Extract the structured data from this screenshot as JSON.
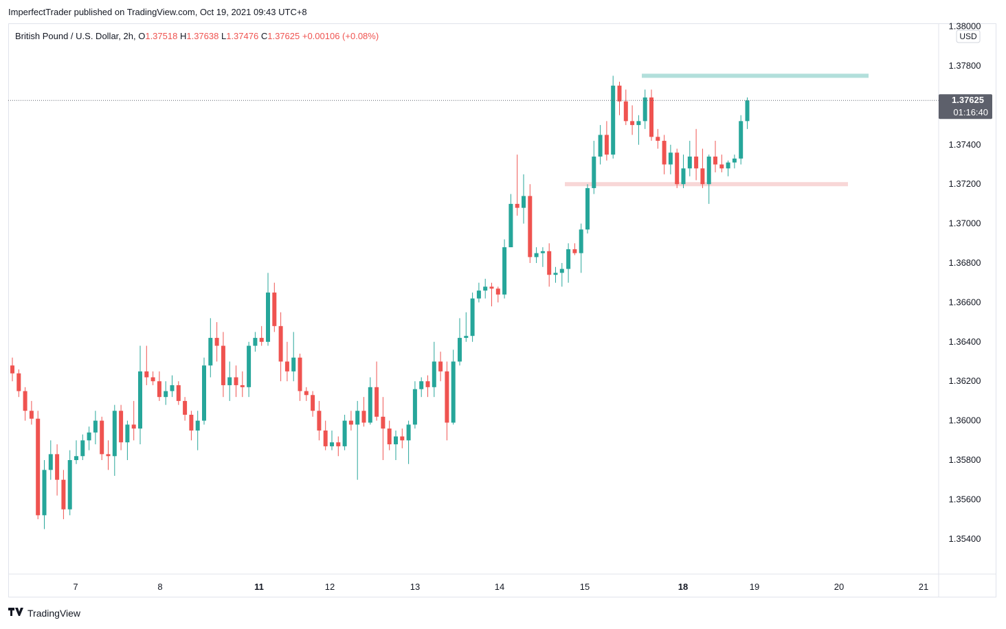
{
  "header": {
    "publisher": "ImperfectTrader published on TradingView.com, Oct 19, 2021 09:43 UTC+8"
  },
  "legend": {
    "symbol": "British Pound / U.S. Dollar, 2h,",
    "o_label": "O",
    "o_value": "1.37518",
    "h_label": "H",
    "h_value": "1.37638",
    "l_label": "L",
    "l_value": "1.37476",
    "c_label": "C",
    "c_value": "1.37625",
    "change": "+0.00106 (+0.08%)"
  },
  "price_axis": {
    "currency": "USD",
    "current_price": "1.37625",
    "countdown": "01:16:40"
  },
  "footer": {
    "brand": "TradingView",
    "logo_icon": "tradingview-logo-icon"
  },
  "colors": {
    "up": "#26a69a",
    "down": "#ef5350",
    "resistance": "#b2dfdb",
    "support": "#f8d7d7",
    "axis_label_bg": "#5d606b"
  },
  "chart_data": {
    "type": "candlestick",
    "ylim": [
      1.352,
      1.38
    ],
    "y_ticks": [
      "1.35400",
      "1.35600",
      "1.35800",
      "1.36000",
      "1.36200",
      "1.36400",
      "1.36600",
      "1.36800",
      "1.37000",
      "1.37200",
      "1.37400",
      "1.37800",
      "1.38000"
    ],
    "x_ticks": [
      "7",
      "8",
      "11",
      "12",
      "13",
      "14",
      "15",
      "18",
      "19",
      "20",
      "21"
    ],
    "zones": [
      {
        "name": "resistance",
        "price": 1.3775
      },
      {
        "name": "support",
        "price": 1.372
      }
    ],
    "last_close": 1.37625,
    "candles": [
      [
        1.3628,
        1.3632,
        1.362,
        1.3624
      ],
      [
        1.3624,
        1.3626,
        1.3612,
        1.3615
      ],
      [
        1.3615,
        1.3617,
        1.36,
        1.3605
      ],
      [
        1.3605,
        1.361,
        1.3598,
        1.3601
      ],
      [
        1.3601,
        1.3605,
        1.355,
        1.3552
      ],
      [
        1.3552,
        1.358,
        1.3545,
        1.3575
      ],
      [
        1.3575,
        1.359,
        1.357,
        1.3583
      ],
      [
        1.3583,
        1.3588,
        1.3562,
        1.357
      ],
      [
        1.357,
        1.3575,
        1.355,
        1.3555
      ],
      [
        1.3555,
        1.3585,
        1.3552,
        1.358
      ],
      [
        1.358,
        1.359,
        1.3578,
        1.3582
      ],
      [
        1.3582,
        1.3593,
        1.358,
        1.359
      ],
      [
        1.359,
        1.3597,
        1.3585,
        1.3594
      ],
      [
        1.3594,
        1.3605,
        1.3588,
        1.36
      ],
      [
        1.36,
        1.3602,
        1.358,
        1.3583
      ],
      [
        1.3583,
        1.359,
        1.3575,
        1.3582
      ],
      [
        1.3582,
        1.3608,
        1.3572,
        1.3605
      ],
      [
        1.3605,
        1.3608,
        1.3585,
        1.3589
      ],
      [
        1.3589,
        1.36,
        1.358,
        1.3598
      ],
      [
        1.3598,
        1.361,
        1.359,
        1.3596
      ],
      [
        1.3596,
        1.3638,
        1.3588,
        1.3625
      ],
      [
        1.3625,
        1.3638,
        1.3618,
        1.3622
      ],
      [
        1.3622,
        1.3625,
        1.3618,
        1.362
      ],
      [
        1.362,
        1.3625,
        1.361,
        1.3612
      ],
      [
        1.3612,
        1.362,
        1.3608,
        1.3615
      ],
      [
        1.3615,
        1.3623,
        1.3612,
        1.3618
      ],
      [
        1.3618,
        1.362,
        1.3608,
        1.361
      ],
      [
        1.361,
        1.3612,
        1.36,
        1.3603
      ],
      [
        1.3603,
        1.3605,
        1.359,
        1.3595
      ],
      [
        1.3595,
        1.3605,
        1.3585,
        1.36
      ],
      [
        1.36,
        1.3632,
        1.3598,
        1.3628
      ],
      [
        1.3628,
        1.3652,
        1.3622,
        1.3642
      ],
      [
        1.3642,
        1.365,
        1.363,
        1.3638
      ],
      [
        1.3638,
        1.3645,
        1.3612,
        1.3618
      ],
      [
        1.3618,
        1.363,
        1.361,
        1.3622
      ],
      [
        1.3622,
        1.3628,
        1.3612,
        1.3618
      ],
      [
        1.3618,
        1.3625,
        1.3612,
        1.3617
      ],
      [
        1.3617,
        1.364,
        1.3612,
        1.3638
      ],
      [
        1.3638,
        1.3645,
        1.3635,
        1.3642
      ],
      [
        1.3642,
        1.3648,
        1.3638,
        1.364
      ],
      [
        1.364,
        1.3675,
        1.3638,
        1.3665
      ],
      [
        1.3665,
        1.367,
        1.3645,
        1.3648
      ],
      [
        1.3648,
        1.3655,
        1.362,
        1.363
      ],
      [
        1.363,
        1.364,
        1.362,
        1.3625
      ],
      [
        1.3625,
        1.3645,
        1.362,
        1.3632
      ],
      [
        1.3632,
        1.3634,
        1.361,
        1.3615
      ],
      [
        1.3615,
        1.3617,
        1.361,
        1.3613
      ],
      [
        1.3613,
        1.3615,
        1.3602,
        1.3605
      ],
      [
        1.3605,
        1.361,
        1.359,
        1.3595
      ],
      [
        1.3595,
        1.36,
        1.3585,
        1.3587
      ],
      [
        1.3587,
        1.3595,
        1.3585,
        1.3589
      ],
      [
        1.3589,
        1.3592,
        1.3582,
        1.3587
      ],
      [
        1.3587,
        1.3603,
        1.3585,
        1.36
      ],
      [
        1.36,
        1.3605,
        1.3595,
        1.3598
      ],
      [
        1.3598,
        1.361,
        1.357,
        1.3605
      ],
      [
        1.3605,
        1.3612,
        1.3597,
        1.3599
      ],
      [
        1.3599,
        1.3622,
        1.3598,
        1.3617
      ],
      [
        1.3617,
        1.363,
        1.36,
        1.3602
      ],
      [
        1.3602,
        1.3612,
        1.358,
        1.3596
      ],
      [
        1.3596,
        1.36,
        1.3585,
        1.3588
      ],
      [
        1.3588,
        1.3595,
        1.358,
        1.3592
      ],
      [
        1.3592,
        1.3596,
        1.3586,
        1.359
      ],
      [
        1.359,
        1.36,
        1.3578,
        1.3598
      ],
      [
        1.3598,
        1.362,
        1.3596,
        1.3616
      ],
      [
        1.3616,
        1.3622,
        1.3612,
        1.362
      ],
      [
        1.362,
        1.3623,
        1.3612,
        1.3617
      ],
      [
        1.3617,
        1.364,
        1.3612,
        1.363
      ],
      [
        1.363,
        1.3635,
        1.362,
        1.3625
      ],
      [
        1.3625,
        1.363,
        1.359,
        1.3599
      ],
      [
        1.3599,
        1.3636,
        1.3598,
        1.363
      ],
      [
        1.363,
        1.3652,
        1.3628,
        1.3642
      ],
      [
        1.3642,
        1.3655,
        1.364,
        1.3643
      ],
      [
        1.3643,
        1.3665,
        1.364,
        1.3662
      ],
      [
        1.3662,
        1.367,
        1.366,
        1.3666
      ],
      [
        1.3666,
        1.3672,
        1.3662,
        1.3668
      ],
      [
        1.3668,
        1.367,
        1.3658,
        1.3667
      ],
      [
        1.3667,
        1.3668,
        1.366,
        1.3664
      ],
      [
        1.3664,
        1.3692,
        1.3662,
        1.3688
      ],
      [
        1.3688,
        1.3715,
        1.3688,
        1.371
      ],
      [
        1.371,
        1.3735,
        1.3704,
        1.3708
      ],
      [
        1.3708,
        1.3725,
        1.37,
        1.3714
      ],
      [
        1.3714,
        1.372,
        1.368,
        1.3683
      ],
      [
        1.3683,
        1.3688,
        1.368,
        1.3685
      ],
      [
        1.3685,
        1.3688,
        1.3678,
        1.3686
      ],
      [
        1.3686,
        1.369,
        1.3668,
        1.3674
      ],
      [
        1.3674,
        1.3678,
        1.367,
        1.3675
      ],
      [
        1.3675,
        1.368,
        1.3668,
        1.3677
      ],
      [
        1.3677,
        1.369,
        1.367,
        1.3687
      ],
      [
        1.3687,
        1.369,
        1.3684,
        1.3685
      ],
      [
        1.3685,
        1.37,
        1.3675,
        1.3697
      ],
      [
        1.3697,
        1.372,
        1.3695,
        1.3718
      ],
      [
        1.3718,
        1.3742,
        1.3715,
        1.3734
      ],
      [
        1.3734,
        1.375,
        1.373,
        1.3745
      ],
      [
        1.3745,
        1.3752,
        1.3732,
        1.3735
      ],
      [
        1.3735,
        1.3775,
        1.3733,
        1.377
      ],
      [
        1.377,
        1.3772,
        1.3755,
        1.3762
      ],
      [
        1.3762,
        1.3768,
        1.375,
        1.3752
      ],
      [
        1.3752,
        1.376,
        1.3745,
        1.375
      ],
      [
        1.375,
        1.3755,
        1.374,
        1.3752
      ],
      [
        1.3752,
        1.3768,
        1.3748,
        1.3764
      ],
      [
        1.3764,
        1.3768,
        1.3742,
        1.3744
      ],
      [
        1.3744,
        1.3748,
        1.3738,
        1.3742
      ],
      [
        1.3742,
        1.3745,
        1.3725,
        1.373
      ],
      [
        1.373,
        1.374,
        1.3725,
        1.3736
      ],
      [
        1.3736,
        1.3738,
        1.3718,
        1.372
      ],
      [
        1.372,
        1.3735,
        1.3718,
        1.3728
      ],
      [
        1.3728,
        1.3742,
        1.3724,
        1.3734
      ],
      [
        1.3734,
        1.3748,
        1.3722,
        1.3728
      ],
      [
        1.3728,
        1.3738,
        1.3718,
        1.372
      ],
      [
        1.372,
        1.3735,
        1.371,
        1.3734
      ],
      [
        1.3734,
        1.3742,
        1.3726,
        1.373
      ],
      [
        1.373,
        1.3735,
        1.3726,
        1.3728
      ],
      [
        1.3728,
        1.3732,
        1.3724,
        1.3731
      ],
      [
        1.3731,
        1.3735,
        1.3728,
        1.3733
      ],
      [
        1.3733,
        1.3755,
        1.373,
        1.3752
      ],
      [
        1.3752,
        1.3764,
        1.3748,
        1.37625
      ]
    ]
  }
}
